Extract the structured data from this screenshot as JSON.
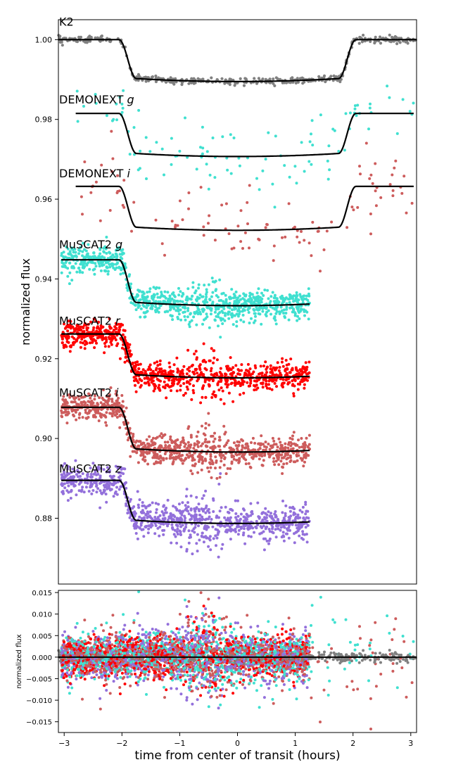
{
  "chart_data": [
    {
      "type": "scatter",
      "panel": "lightcurves",
      "ylabel": "normalized flux",
      "xlim": [
        -3.1,
        3.1
      ],
      "ylim": [
        0.8635,
        1.005
      ],
      "yticks": [
        0.88,
        0.9,
        0.92,
        0.94,
        0.96,
        0.98,
        1.0
      ],
      "ytick_labels": [
        "0.88",
        "0.90",
        "0.92",
        "0.94",
        "0.96",
        "0.98",
        "1.00"
      ],
      "model_color": "#000000",
      "series": [
        {
          "name": "K2",
          "name_plain": "K2",
          "name_italic": "",
          "color": "#808080",
          "baseline": 1.0,
          "depth": 0.0105,
          "x_range": [
            -3.1,
            3.1
          ],
          "point_count": 420,
          "scatter_sigma": 0.0004,
          "label_flux": 1.0035
        },
        {
          "name": "DEMONEXT g",
          "name_plain": "DEMONEXT ",
          "name_italic": "g",
          "color": "#40e0d0",
          "baseline": 0.9815,
          "depth": 0.0108,
          "x_range": [
            -2.8,
            3.05
          ],
          "point_count": 110,
          "scatter_sigma": 0.0045,
          "label_flux": 0.984
        },
        {
          "name": "DEMONEXT i",
          "name_plain": "DEMONEXT ",
          "name_italic": "i",
          "color": "#cd5c5c",
          "baseline": 0.9632,
          "depth": 0.011,
          "x_range": [
            -2.8,
            3.05
          ],
          "point_count": 110,
          "scatter_sigma": 0.0045,
          "label_flux": 0.9655
        },
        {
          "name": "MuSCAT2 g",
          "name_plain": "MuSCAT2 ",
          "name_italic": "g",
          "color": "#40e0d0",
          "baseline": 0.9448,
          "depth": 0.0115,
          "x_range": [
            -3.05,
            1.25
          ],
          "point_count": 900,
          "scatter_sigma": 0.0018,
          "label_flux": 0.9477
        },
        {
          "name": "MuSCAT2 r",
          "name_plain": "MuSCAT2 ",
          "name_italic": "r",
          "color": "#ff0000",
          "baseline": 0.9262,
          "depth": 0.011,
          "x_range": [
            -3.05,
            1.25
          ],
          "point_count": 900,
          "scatter_sigma": 0.0018,
          "label_flux": 0.9285
        },
        {
          "name": "MuSCAT2 i",
          "name_plain": "MuSCAT2 ",
          "name_italic": "i",
          "color": "#cd5c5c",
          "baseline": 0.9078,
          "depth": 0.0112,
          "x_range": [
            -3.05,
            1.25
          ],
          "point_count": 900,
          "scatter_sigma": 0.0018,
          "label_flux": 0.9105
        },
        {
          "name": "MuSCAT2 z",
          "name_plain": "MuSCAT2 ",
          "name_italic": "z",
          "color": "#9370db",
          "baseline": 0.8895,
          "depth": 0.0108,
          "x_range": [
            -3.05,
            1.25
          ],
          "point_count": 900,
          "scatter_sigma": 0.0022,
          "label_flux": 0.8915
        }
      ],
      "transit_model": {
        "ingress_start": -2.05,
        "full_start": -1.75,
        "full_end": 1.75,
        "egress_end": 2.05
      }
    },
    {
      "type": "scatter",
      "panel": "residuals",
      "ylabel": "normalized flux",
      "xlabel": "time from center of transit (hours)",
      "xlim": [
        -3.1,
        3.1
      ],
      "ylim": [
        -0.0175,
        0.0155
      ],
      "xticks": [
        -3,
        -2,
        -1,
        0,
        1,
        2,
        3
      ],
      "xtick_labels": [
        "−3",
        "−2",
        "−1",
        "0",
        "1",
        "2",
        "3"
      ],
      "yticks": [
        -0.015,
        -0.01,
        -0.005,
        0.0,
        0.005,
        0.01,
        0.015
      ],
      "ytick_labels": [
        "−0.015",
        "−0.010",
        "−0.005",
        "0.000",
        "0.005",
        "0.010",
        "0.015"
      ],
      "zero_line": 0.0
    }
  ]
}
